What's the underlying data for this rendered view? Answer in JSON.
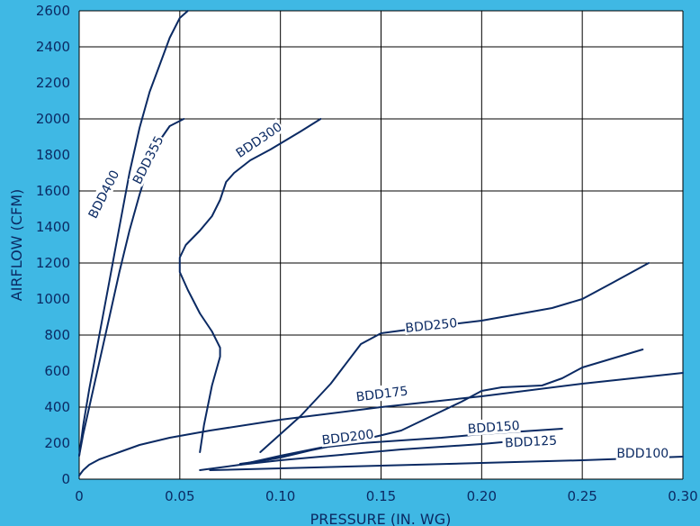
{
  "chart_data": {
    "type": "line",
    "title": "",
    "xlabel": "PRESSURE (IN. WG)",
    "ylabel": "AIRFLOW (CFM)",
    "xlim": [
      0,
      0.3
    ],
    "ylim": [
      0,
      2600
    ],
    "x_ticks": [
      {
        "value": 0,
        "label": "0"
      },
      {
        "value": 0.05,
        "label": "0.05"
      },
      {
        "value": 0.1,
        "label": "0.10"
      },
      {
        "value": 0.15,
        "label": "0.15"
      },
      {
        "value": 0.2,
        "label": "0.20"
      },
      {
        "value": 0.25,
        "label": "0.25"
      },
      {
        "value": 0.3,
        "label": "0.30"
      }
    ],
    "y_ticks": [
      0,
      200,
      400,
      600,
      800,
      1000,
      1200,
      1400,
      1600,
      1800,
      2000,
      2200,
      2400,
      2600
    ],
    "x_grid": [
      0,
      0.05,
      0.1,
      0.15,
      0.2,
      0.25,
      0.3
    ],
    "y_grid": [
      0,
      400,
      800,
      1200,
      1600,
      2000,
      2400,
      2600
    ],
    "grid": true,
    "colors": {
      "line": "#0b2a63",
      "background": "#3fb8e4",
      "plot": "#ffffff",
      "grid": "#000000"
    },
    "series": [
      {
        "name": "BDD400",
        "label_at": {
          "x": 0.0125,
          "y": 1580,
          "angle": -63
        },
        "points": [
          [
            0,
            130
          ],
          [
            0.002,
            300
          ],
          [
            0.005,
            500
          ],
          [
            0.01,
            800
          ],
          [
            0.015,
            1100
          ],
          [
            0.02,
            1400
          ],
          [
            0.025,
            1700
          ],
          [
            0.03,
            1950
          ],
          [
            0.035,
            2150
          ],
          [
            0.04,
            2300
          ],
          [
            0.045,
            2450
          ],
          [
            0.05,
            2560
          ],
          [
            0.054,
            2600
          ]
        ]
      },
      {
        "name": "BDD355",
        "label_at": {
          "x": 0.0345,
          "y": 1770,
          "angle": -63
        },
        "points": [
          [
            0,
            130
          ],
          [
            0.002,
            250
          ],
          [
            0.005,
            400
          ],
          [
            0.01,
            650
          ],
          [
            0.015,
            900
          ],
          [
            0.02,
            1150
          ],
          [
            0.025,
            1380
          ],
          [
            0.03,
            1580
          ],
          [
            0.035,
            1760
          ],
          [
            0.04,
            1880
          ],
          [
            0.045,
            1960
          ],
          [
            0.052,
            2000
          ]
        ]
      },
      {
        "name": "BDD300",
        "label_at": {
          "x": 0.0895,
          "y": 1880,
          "angle": -34
        },
        "points": [
          [
            0.06,
            150
          ],
          [
            0.062,
            300
          ],
          [
            0.066,
            520
          ],
          [
            0.07,
            680
          ],
          [
            0.07,
            730
          ],
          [
            0.066,
            820
          ],
          [
            0.06,
            920
          ],
          [
            0.054,
            1050
          ],
          [
            0.05,
            1150
          ],
          [
            0.05,
            1230
          ],
          [
            0.053,
            1300
          ],
          [
            0.06,
            1380
          ],
          [
            0.066,
            1460
          ],
          [
            0.07,
            1550
          ],
          [
            0.073,
            1650
          ],
          [
            0.077,
            1700
          ],
          [
            0.085,
            1770
          ],
          [
            0.095,
            1830
          ],
          [
            0.11,
            1930
          ],
          [
            0.12,
            2000
          ]
        ]
      },
      {
        "name": "BDD250",
        "label_at": {
          "x": 0.175,
          "y": 850,
          "angle": -6
        },
        "points": [
          [
            0.09,
            150
          ],
          [
            0.11,
            350
          ],
          [
            0.125,
            530
          ],
          [
            0.14,
            750
          ],
          [
            0.15,
            810
          ],
          [
            0.17,
            840
          ],
          [
            0.2,
            880
          ],
          [
            0.235,
            950
          ],
          [
            0.25,
            1000
          ],
          [
            0.265,
            1090
          ],
          [
            0.283,
            1200
          ]
        ]
      },
      {
        "name": "BDD175",
        "label_at": {
          "x": 0.1505,
          "y": 470,
          "angle": -7
        },
        "points": [
          [
            0,
            20
          ],
          [
            0.002,
            50
          ],
          [
            0.005,
            80
          ],
          [
            0.01,
            110
          ],
          [
            0.02,
            150
          ],
          [
            0.03,
            190
          ],
          [
            0.045,
            230
          ],
          [
            0.065,
            270
          ],
          [
            0.1,
            330
          ],
          [
            0.15,
            400
          ],
          [
            0.2,
            460
          ],
          [
            0.25,
            530
          ],
          [
            0.3,
            590
          ]
        ]
      },
      {
        "name": "BDD200",
        "label_at": {
          "x": 0.1335,
          "y": 230,
          "angle": -7
        },
        "points": [
          [
            0.08,
            85
          ],
          [
            0.09,
            100
          ],
          [
            0.1,
            120
          ],
          [
            0.115,
            160
          ],
          [
            0.13,
            195
          ],
          [
            0.145,
            230
          ],
          [
            0.16,
            270
          ],
          [
            0.175,
            350
          ],
          [
            0.19,
            430
          ],
          [
            0.2,
            490
          ],
          [
            0.21,
            510
          ],
          [
            0.23,
            520
          ],
          [
            0.24,
            560
          ],
          [
            0.25,
            620
          ],
          [
            0.265,
            670
          ],
          [
            0.28,
            720
          ]
        ]
      },
      {
        "name": "BDD150",
        "label_at": {
          "x": 0.206,
          "y": 285,
          "angle": -4
        },
        "points": [
          [
            0.08,
            80
          ],
          [
            0.1,
            130
          ],
          [
            0.12,
            175
          ],
          [
            0.14,
            200
          ],
          [
            0.16,
            215
          ],
          [
            0.18,
            230
          ],
          [
            0.2,
            250
          ],
          [
            0.22,
            265
          ],
          [
            0.24,
            280
          ]
        ]
      },
      {
        "name": "BDD125",
        "label_at": {
          "x": 0.2245,
          "y": 205,
          "angle": -3
        },
        "points": [
          [
            0.06,
            50
          ],
          [
            0.08,
            80
          ],
          [
            0.1,
            105
          ],
          [
            0.12,
            125
          ],
          [
            0.14,
            145
          ],
          [
            0.16,
            165
          ],
          [
            0.18,
            180
          ],
          [
            0.2,
            195
          ],
          [
            0.21,
            205
          ]
        ]
      },
      {
        "name": "BDD100",
        "label_at": {
          "x": 0.28,
          "y": 140,
          "angle": 0
        },
        "points": [
          [
            0.065,
            50
          ],
          [
            0.1,
            60
          ],
          [
            0.15,
            75
          ],
          [
            0.2,
            90
          ],
          [
            0.25,
            105
          ],
          [
            0.3,
            125
          ]
        ]
      }
    ]
  }
}
